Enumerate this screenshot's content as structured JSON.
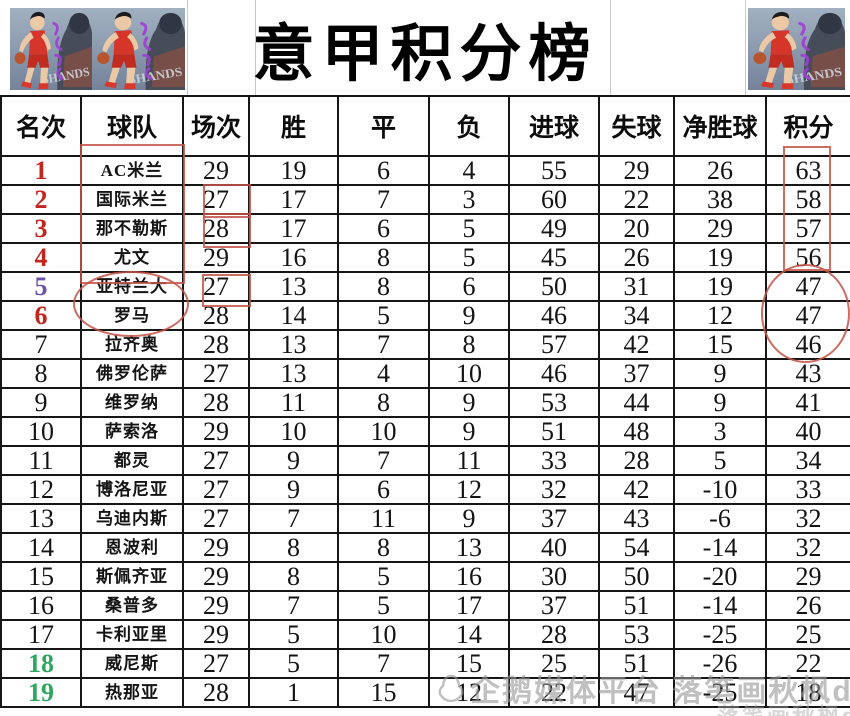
{
  "title": "意甲积分榜",
  "watermark": {
    "main": "企鹅媒体平台 落笔画秋枫d",
    "corner": "落笔画秋枫d"
  },
  "table": {
    "headers": [
      "名次",
      "球队",
      "场次",
      "胜",
      "平",
      "负",
      "进球",
      "失球",
      "净胜球",
      "积分"
    ],
    "rows": [
      {
        "rank": "1",
        "team": "AC米兰",
        "played": "29",
        "win": "19",
        "draw": "6",
        "loss": "4",
        "gf": "55",
        "ga": "29",
        "gd": "26",
        "pts": "63",
        "rank_color": "red"
      },
      {
        "rank": "2",
        "team": "国际米兰",
        "played": "27",
        "win": "17",
        "draw": "7",
        "loss": "3",
        "gf": "60",
        "ga": "22",
        "gd": "38",
        "pts": "58",
        "rank_color": "red"
      },
      {
        "rank": "3",
        "team": "那不勒斯",
        "played": "28",
        "win": "17",
        "draw": "6",
        "loss": "5",
        "gf": "49",
        "ga": "20",
        "gd": "29",
        "pts": "57",
        "rank_color": "red"
      },
      {
        "rank": "4",
        "team": "尤文",
        "played": "29",
        "win": "16",
        "draw": "8",
        "loss": "5",
        "gf": "45",
        "ga": "26",
        "gd": "19",
        "pts": "56",
        "rank_color": "red"
      },
      {
        "rank": "5",
        "team": "亚特兰大",
        "played": "27",
        "win": "13",
        "draw": "8",
        "loss": "6",
        "gf": "50",
        "ga": "31",
        "gd": "19",
        "pts": "47",
        "rank_color": "purple"
      },
      {
        "rank": "6",
        "team": "罗马",
        "played": "28",
        "win": "14",
        "draw": "5",
        "loss": "9",
        "gf": "46",
        "ga": "34",
        "gd": "12",
        "pts": "47",
        "rank_color": "red"
      },
      {
        "rank": "7",
        "team": "拉齐奥",
        "played": "28",
        "win": "13",
        "draw": "7",
        "loss": "8",
        "gf": "57",
        "ga": "42",
        "gd": "15",
        "pts": "46",
        "rank_color": "black"
      },
      {
        "rank": "8",
        "team": "佛罗伦萨",
        "played": "27",
        "win": "13",
        "draw": "4",
        "loss": "10",
        "gf": "46",
        "ga": "37",
        "gd": "9",
        "pts": "43",
        "rank_color": "black"
      },
      {
        "rank": "9",
        "team": "维罗纳",
        "played": "28",
        "win": "11",
        "draw": "8",
        "loss": "9",
        "gf": "53",
        "ga": "44",
        "gd": "9",
        "pts": "41",
        "rank_color": "black"
      },
      {
        "rank": "10",
        "team": "萨索洛",
        "played": "29",
        "win": "10",
        "draw": "10",
        "loss": "9",
        "gf": "51",
        "ga": "48",
        "gd": "3",
        "pts": "40",
        "rank_color": "black"
      },
      {
        "rank": "11",
        "team": "都灵",
        "played": "27",
        "win": "9",
        "draw": "7",
        "loss": "11",
        "gf": "33",
        "ga": "28",
        "gd": "5",
        "pts": "34",
        "rank_color": "black"
      },
      {
        "rank": "12",
        "team": "博洛尼亚",
        "played": "27",
        "win": "9",
        "draw": "6",
        "loss": "12",
        "gf": "32",
        "ga": "42",
        "gd": "-10",
        "pts": "33",
        "rank_color": "black"
      },
      {
        "rank": "13",
        "team": "乌迪内斯",
        "played": "27",
        "win": "7",
        "draw": "11",
        "loss": "9",
        "gf": "37",
        "ga": "43",
        "gd": "-6",
        "pts": "32",
        "rank_color": "black"
      },
      {
        "rank": "14",
        "team": "恩波利",
        "played": "29",
        "win": "8",
        "draw": "8",
        "loss": "13",
        "gf": "40",
        "ga": "54",
        "gd": "-14",
        "pts": "32",
        "rank_color": "black"
      },
      {
        "rank": "15",
        "team": "斯佩齐亚",
        "played": "29",
        "win": "8",
        "draw": "5",
        "loss": "16",
        "gf": "30",
        "ga": "50",
        "gd": "-20",
        "pts": "29",
        "rank_color": "black"
      },
      {
        "rank": "16",
        "team": "桑普多",
        "played": "29",
        "win": "7",
        "draw": "5",
        "loss": "17",
        "gf": "37",
        "ga": "51",
        "gd": "-14",
        "pts": "26",
        "rank_color": "black"
      },
      {
        "rank": "17",
        "team": "卡利亚里",
        "played": "29",
        "win": "5",
        "draw": "10",
        "loss": "14",
        "gf": "28",
        "ga": "53",
        "gd": "-25",
        "pts": "25",
        "rank_color": "black"
      },
      {
        "rank": "18",
        "team": "威尼斯",
        "played": "27",
        "win": "5",
        "draw": "7",
        "loss": "15",
        "gf": "25",
        "ga": "51",
        "gd": "-26",
        "pts": "22",
        "rank_color": "green"
      },
      {
        "rank": "19",
        "team": "热那亚",
        "played": "28",
        "win": "1",
        "draw": "15",
        "loss": "12",
        "gf": "22",
        "ga": "47",
        "gd": "-25",
        "pts": "18",
        "rank_color": "green"
      }
    ]
  },
  "colors": {
    "rank_red": "#c3251d",
    "rank_purple": "#6a52a8",
    "rank_green": "#2fa85f",
    "annotation_red": "#c45446",
    "watermark_gray": "#9a9a9a"
  },
  "icons": {
    "player_art": "basketball-player-art",
    "watermark_logo": "penguin-icon"
  }
}
